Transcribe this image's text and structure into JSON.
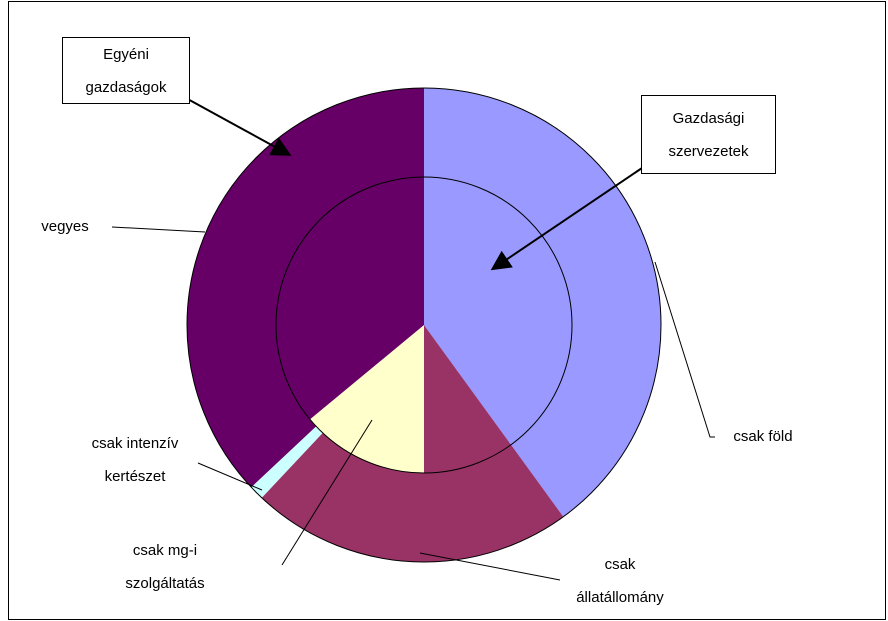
{
  "chart_data": {
    "type": "doughnut",
    "categories": [
      "csak föld",
      "csak állatállomány",
      "csak intenzív kertészet",
      "csak mg-i szolgáltatás",
      "vegyes"
    ],
    "colors": [
      "#9999ff",
      "#993366",
      "#ccffff",
      "#ffffcc",
      "#660066"
    ],
    "series": [
      {
        "name": "Egyéni gazdaságok",
        "ring": "outer",
        "values": [
          40,
          22,
          1,
          0,
          37
        ]
      },
      {
        "name": "Gazdasági szervezetek",
        "ring": "inner",
        "values": [
          40,
          10,
          0,
          14,
          36
        ]
      }
    ]
  }
}
